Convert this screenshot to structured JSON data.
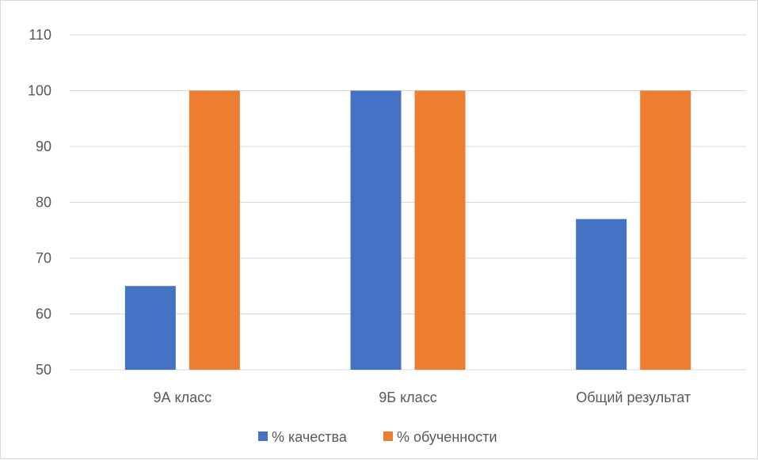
{
  "chart_data": {
    "type": "bar",
    "categories": [
      "9А класс",
      "9Б класс",
      "Общий результат"
    ],
    "series": [
      {
        "name": "% качества",
        "values": [
          65,
          100,
          77
        ],
        "color": "#4472C4"
      },
      {
        "name": "% обученности",
        "values": [
          100,
          100,
          100
        ],
        "color": "#ED7D31"
      }
    ],
    "ylim": [
      50,
      110
    ],
    "yticks": [
      50,
      60,
      70,
      80,
      90,
      100,
      110
    ],
    "grid": true,
    "legend_position": "bottom",
    "gridline_color": "#d9d9d9"
  }
}
